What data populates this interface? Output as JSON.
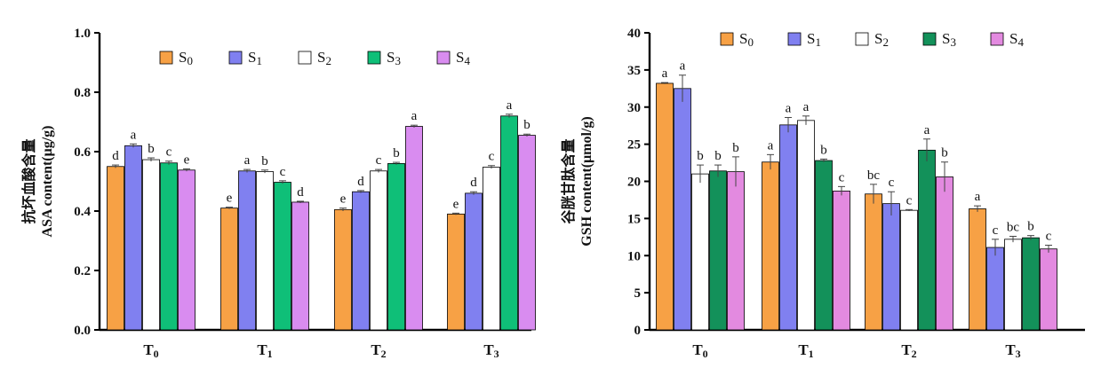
{
  "chart_data": [
    {
      "type": "bar",
      "ylabel_cn": "抗坏血酸含量",
      "ylabel": "ASA content(μg/g)",
      "categories": [
        "T0",
        "T1",
        "T2",
        "T3"
      ],
      "ylim": [
        0,
        1.0
      ],
      "yticks": [
        "0.0",
        "0.2",
        "0.4",
        "0.6",
        "0.8",
        "1.0"
      ],
      "legend_position": "top",
      "series": [
        {
          "name": "S0",
          "color": "#F7A145",
          "values": [
            0.55,
            0.41,
            0.405,
            0.39
          ],
          "errors": [
            0.005,
            0.003,
            0.005,
            0.003
          ],
          "letters": [
            "d",
            "e",
            "e",
            "e"
          ]
        },
        {
          "name": "S1",
          "color": "#8080F0",
          "values": [
            0.62,
            0.535,
            0.465,
            0.46
          ],
          "errors": [
            0.006,
            0.005,
            0.004,
            0.005
          ],
          "letters": [
            "a",
            "a",
            "d",
            "d"
          ]
        },
        {
          "name": "S2",
          "color": "#FFFFFF",
          "values": [
            0.573,
            0.533,
            0.535,
            0.548
          ],
          "errors": [
            0.006,
            0.005,
            0.005,
            0.005
          ],
          "letters": [
            "b",
            "b",
            "c",
            "c"
          ]
        },
        {
          "name": "S3",
          "color": "#0FBF78",
          "values": [
            0.562,
            0.497,
            0.56,
            0.72
          ],
          "errors": [
            0.006,
            0.005,
            0.004,
            0.006
          ],
          "letters": [
            "c",
            "c",
            "b",
            "a"
          ]
        },
        {
          "name": "S4",
          "color": "#D98CF0",
          "values": [
            0.538,
            0.43,
            0.685,
            0.655
          ],
          "errors": [
            0.004,
            0.003,
            0.004,
            0.004
          ],
          "letters": [
            "e",
            "d",
            "a",
            "b"
          ]
        }
      ]
    },
    {
      "type": "bar",
      "ylabel_cn": "谷胱甘肽含量",
      "ylabel": "GSH content(μmol/g)",
      "categories": [
        "T0",
        "T1",
        "T2",
        "T3"
      ],
      "ylim": [
        0,
        40
      ],
      "yticks": [
        "0",
        "5",
        "10",
        "15",
        "20",
        "25",
        "30",
        "35",
        "40"
      ],
      "legend_position": "top",
      "series": [
        {
          "name": "S0",
          "color": "#F7A145",
          "values": [
            33.2,
            22.6,
            18.3,
            16.3
          ],
          "errors": [
            0.1,
            1.0,
            1.3,
            0.4
          ],
          "letters": [
            "a",
            "a",
            "bc",
            "a"
          ]
        },
        {
          "name": "S1",
          "color": "#8080F0",
          "values": [
            32.5,
            27.6,
            17.0,
            11.1
          ],
          "errors": [
            1.8,
            1.0,
            1.6,
            1.1
          ],
          "letters": [
            "a",
            "a",
            "c",
            "c"
          ]
        },
        {
          "name": "S2",
          "color": "#FFFFFF",
          "values": [
            21.0,
            28.2,
            16.1,
            12.2
          ],
          "errors": [
            1.2,
            0.6,
            0.1,
            0.4
          ],
          "letters": [
            "b",
            "a",
            "c",
            "bc"
          ]
        },
        {
          "name": "S3",
          "color": "#13915A",
          "values": [
            21.4,
            22.8,
            24.2,
            12.4
          ],
          "errors": [
            0.8,
            0.2,
            1.5,
            0.3
          ],
          "letters": [
            "b",
            "b",
            "a",
            "b"
          ]
        },
        {
          "name": "S4",
          "color": "#E38AE0",
          "values": [
            21.3,
            18.7,
            20.6,
            10.9
          ],
          "errors": [
            2.0,
            0.6,
            2.0,
            0.5
          ],
          "letters": [
            "b",
            "c",
            "b",
            "c"
          ]
        }
      ]
    }
  ]
}
